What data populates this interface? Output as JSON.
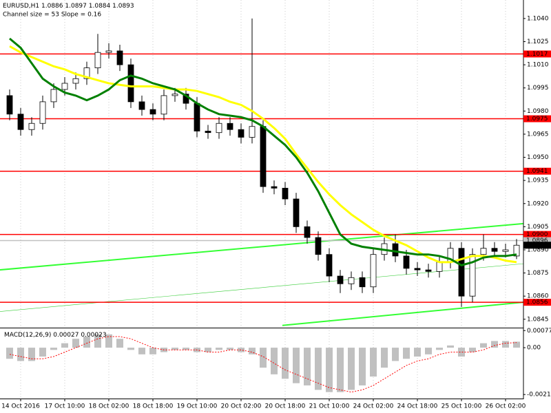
{
  "chart_data": [
    {
      "type": "candlestick",
      "symbol": "EURUSD,H1",
      "subtitle": "Channel size = 53 Slope = 0.16",
      "categories": [
        null,
        "14 Oct 2016",
        null,
        null,
        null,
        "17 Oct 10:00",
        null,
        null,
        null,
        "18 Oct 02:00",
        null,
        null,
        null,
        "18 Oct 18:00",
        null,
        null,
        null,
        "19 Oct 10:00",
        null,
        null,
        null,
        "20 Oct 02:00",
        null,
        null,
        null,
        "20 Oct 18:00",
        null,
        null,
        null,
        "21 Oct 10:00",
        null,
        null,
        null,
        "24 Oct 02:00",
        null,
        null,
        null,
        "24 Oct 18:00",
        null,
        null,
        null,
        "25 Oct 10:00",
        null,
        null,
        null,
        "26 Oct 02:00",
        null
      ],
      "open": [
        1.099,
        1.0978,
        1.0968,
        1.0972,
        1.0986,
        1.0994,
        1.0998,
        1.1001,
        1.1008,
        1.1018,
        1.1019,
        1.101,
        1.0986,
        1.0981,
        1.0978,
        1.099,
        1.0991,
        1.0985,
        1.0967,
        1.0966,
        1.0972,
        1.0968,
        1.0963,
        1.097,
        1.0931,
        1.093,
        1.0923,
        1.0905,
        1.0898,
        1.0887,
        1.0873,
        1.0868,
        1.0872,
        1.0866,
        1.0887,
        1.0894,
        1.0886,
        1.0878,
        1.0877,
        1.0876,
        1.0882,
        1.0891,
        1.086,
        1.0887,
        1.0891,
        1.0889,
        1.0886
      ],
      "high": [
        1.0994,
        1.0982,
        1.0976,
        1.099,
        1.0998,
        1.1002,
        1.1005,
        1.1012,
        1.103,
        1.1024,
        1.1023,
        1.1014,
        1.099,
        1.0985,
        1.0994,
        1.0995,
        1.0995,
        1.0989,
        1.0971,
        1.0976,
        1.0976,
        1.0972,
        1.104,
        1.0974,
        1.0935,
        1.0934,
        1.0927,
        1.0909,
        1.0902,
        1.0891,
        1.0877,
        1.0876,
        1.0876,
        1.0891,
        1.0898,
        1.09,
        1.089,
        1.0882,
        1.0881,
        1.0886,
        1.0895,
        1.0895,
        1.0891,
        1.09,
        1.0895,
        1.0894,
        1.0897
      ],
      "low": [
        1.0974,
        1.0964,
        1.0964,
        1.0968,
        1.0982,
        1.099,
        1.0994,
        1.0997,
        1.1004,
        1.1014,
        1.1006,
        1.0982,
        1.0977,
        1.0974,
        1.0974,
        1.0986,
        1.0981,
        1.0963,
        1.0962,
        1.0962,
        1.0964,
        1.0959,
        1.0959,
        1.0927,
        1.0926,
        1.0919,
        1.0901,
        1.0894,
        1.0883,
        1.0869,
        1.0862,
        1.0864,
        1.0862,
        1.0862,
        1.0883,
        1.0882,
        1.0874,
        1.0873,
        1.0872,
        1.0872,
        1.0878,
        1.0853,
        1.0856,
        1.0883,
        1.0885,
        1.0885,
        1.0884
      ],
      "close": [
        1.0978,
        1.0968,
        1.0972,
        1.0986,
        1.0994,
        1.0998,
        1.1001,
        1.1008,
        1.1018,
        1.1019,
        1.101,
        1.0986,
        1.0981,
        1.0978,
        1.099,
        1.0991,
        1.0985,
        1.0967,
        1.0966,
        1.0972,
        1.0968,
        1.0963,
        1.097,
        1.0931,
        1.093,
        1.0923,
        1.0905,
        1.0898,
        1.0887,
        1.0873,
        1.0868,
        1.0872,
        1.0866,
        1.0887,
        1.0894,
        1.0886,
        1.0878,
        1.0877,
        1.0876,
        1.0882,
        1.0891,
        1.086,
        1.0887,
        1.0891,
        1.0889,
        1.089,
        1.0893
      ],
      "up_color": "#ffffff",
      "down_color": "#000000",
      "overlays": [
        {
          "color": "#ffff00",
          "values": [
            1.1022,
            1.1018,
            1.1015,
            1.1012,
            1.1009,
            1.1007,
            1.1004,
            1.1002,
            1.1,
            1.0998,
            1.0997,
            1.0996,
            1.0996,
            1.0996,
            1.0995,
            1.0994,
            1.0994,
            1.0993,
            1.0991,
            1.0989,
            1.0986,
            1.0984,
            1.098,
            1.0975,
            1.0969,
            1.0962,
            1.0952,
            1.0943,
            1.0934,
            1.0926,
            1.0919,
            1.0913,
            1.0908,
            1.0903,
            1.0899,
            1.0896,
            1.0893,
            1.0889,
            1.0885,
            1.0882,
            1.0882,
            1.0884,
            1.0886,
            1.0886,
            1.0885,
            1.0883,
            1.0882
          ]
        },
        {
          "color": "#008000",
          "values": [
            1.1027,
            1.1021,
            1.1011,
            1.1001,
            1.0996,
            1.0992,
            1.099,
            1.0987,
            1.099,
            1.0994,
            1.1,
            1.1003,
            1.1001,
            1.0998,
            1.0996,
            1.0994,
            1.099,
            1.0985,
            1.0981,
            1.0978,
            1.0977,
            1.0976,
            1.0974,
            1.097,
            1.0964,
            1.0958,
            1.095,
            1.094,
            1.0928,
            1.0914,
            1.09,
            1.0894,
            1.0892,
            1.0891,
            1.089,
            1.0889,
            1.0888,
            1.0887,
            1.0887,
            1.0886,
            1.0884,
            1.088,
            1.0882,
            1.0885,
            1.0886,
            1.0886,
            1.0887
          ]
        }
      ],
      "levels": [
        {
          "value": 1.1017,
          "color": "#ff0000"
        },
        {
          "value": 1.0975,
          "color": "#ff0000"
        },
        {
          "value": 1.0941,
          "color": "#ff0000"
        },
        {
          "value": 1.09,
          "label": "1.0900",
          "color": "#ff0000"
        },
        {
          "value": 1.0896,
          "color": "#c0c0c0"
        },
        {
          "value": 1.0856,
          "color": "#ff0000"
        }
      ],
      "last_color": "#000000",
      "trend_lines": [
        {
          "x": [
            -0.9,
            46.6
          ],
          "y": [
            1.0877,
            1.0907
          ],
          "color": "#33ff33",
          "width": 2
        },
        {
          "x": [
            24.75,
            46.6
          ],
          "y": [
            1.0841,
            1.0856
          ],
          "color": "#33ff33",
          "width": 2
        },
        {
          "x": [
            -0.9,
            46.6
          ],
          "y": [
            1.085,
            1.0881
          ],
          "color": "#33cc33",
          "width": 0.6
        }
      ],
      "ylim": [
        1.084,
        1.1052
      ],
      "yticks": [
        {
          "value": 1.104,
          "label": "1.1040"
        },
        1.1025,
        {
          "value": 1.101,
          "label": "1.1010"
        },
        1.0995,
        {
          "value": 1.098,
          "label": "1.0980"
        },
        1.0965,
        {
          "value": 1.095,
          "label": "1.0950"
        },
        1.0935,
        {
          "value": 1.092,
          "label": "1.0920"
        },
        1.0905,
        {
          "value": 1.089,
          "label": "1.0890"
        },
        1.0875,
        {
          "value": 1.086,
          "label": "1.0860"
        },
        1.0845
      ],
      "grid": true
    },
    {
      "type": "macd",
      "title": "MACD(12,26,9)",
      "histogram": [
        -0.0005,
        -0.0006,
        -0.0006,
        -0.0004,
        -0.0001,
        0.0002,
        0.0004,
        0.0005,
        0.0006,
        0.0006,
        0.0004,
        -0.0001,
        -0.0003,
        -0.0003,
        -0.0002,
        -0.0001,
        -0.0001,
        -0.0002,
        -0.0002,
        -0.0001,
        -0.0001,
        -0.0002,
        -0.0003,
        -0.0009,
        -0.0012,
        -0.0014,
        -0.0016,
        -0.0017,
        -0.0019,
        -0.002,
        -0.002,
        -0.0019,
        -0.0017,
        -0.0013,
        -0.0009,
        -0.0006,
        -0.0005,
        -0.0004,
        -0.0003,
        -0.0001,
        0.0001,
        -0.0004,
        -0.0002,
        0.0002,
        0.0003,
        0.0003,
        0.00027
      ],
      "histogram_color": "#c0c0c0",
      "signal": [
        -0.0003,
        -0.0004,
        -0.0005,
        -0.0005,
        -0.0004,
        -0.0002,
        0.0,
        0.0002,
        0.0004,
        0.0005,
        0.0005,
        0.0004,
        0.0002,
        0.0,
        -0.0001,
        -0.0001,
        -0.0001,
        -0.0001,
        -0.0002,
        -0.0002,
        -0.0001,
        -0.0001,
        -0.0002,
        -0.0004,
        -0.0007,
        -0.001,
        -0.0012,
        -0.0014,
        -0.0016,
        -0.0018,
        -0.0019,
        -0.002,
        -0.0019,
        -0.0017,
        -0.0014,
        -0.0011,
        -0.0008,
        -0.0006,
        -0.0005,
        -0.0003,
        -0.0002,
        -0.0002,
        -0.0002,
        -0.0001,
        0.0001,
        0.0002,
        0.00023
      ],
      "signal_color": "#ff0000",
      "ylim": [
        -0.00226,
        0.00084
      ],
      "yticks": [
        0.00077,
        {
          "value": 0,
          "label": "0.00"
        },
        -0.00211
      ]
    }
  ]
}
